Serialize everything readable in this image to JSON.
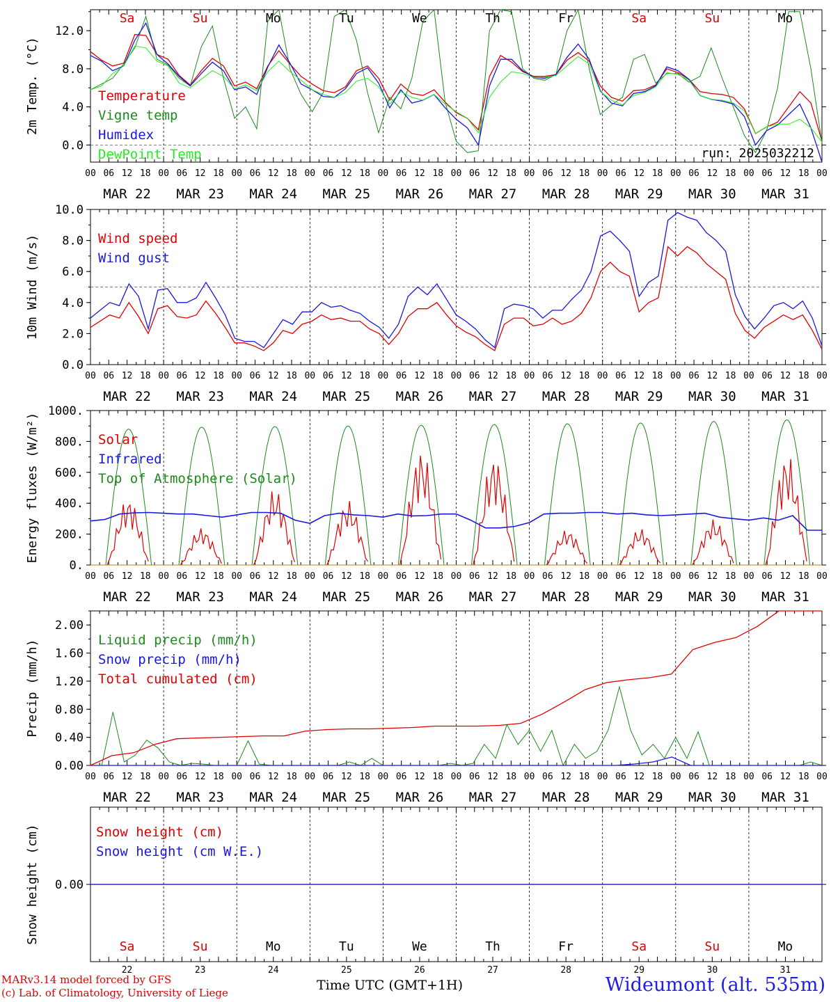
{
  "colors": {
    "red": "#e00000",
    "green": "#1c8a1c",
    "blue": "#1818e0",
    "lightgreen": "#22ee22",
    "grid": "#000000"
  },
  "time_axis": {
    "hour_labels": [
      "00",
      "06",
      "12",
      "18"
    ],
    "date_labels": [
      "MAR 22",
      "MAR 23",
      "MAR 24",
      "MAR 25",
      "MAR 26",
      "MAR 27",
      "MAR 28",
      "MAR 29",
      "MAR 30",
      "MAR 31"
    ],
    "day_names": [
      "Sa",
      "Su",
      "Mo",
      "Tu",
      "We",
      "Th",
      "Fr",
      "Sa",
      "Su",
      "Mo"
    ],
    "day_name_colors": [
      "red",
      "red",
      "black",
      "black",
      "black",
      "black",
      "black",
      "red",
      "red",
      "black"
    ],
    "day_numbers": [
      "22",
      "23",
      "24",
      "25",
      "26",
      "27",
      "28",
      "29",
      "30",
      "31"
    ]
  },
  "footer": {
    "model_line1": "MARv3.14 model forced by GFS",
    "model_line2": "(c) Lab. of Climatology, University of Liege",
    "axis_title": "Time UTC (GMT+1H)",
    "station": "Wideumont (alt. 535m)"
  },
  "chart_data": [
    {
      "type": "line",
      "ylabel": "2m Temp. (°C)",
      "ylim": [
        -1.8,
        14.2
      ],
      "yticks": [
        "0.0",
        "4.0",
        "8.0",
        "12.0"
      ],
      "ytick_values": [
        0,
        4,
        8,
        12
      ],
      "ref_line": 0,
      "annotation": "run: 2025032212",
      "x_hours_start": 0,
      "x_hours_end": 240,
      "series": [
        {
          "name": "Temperature",
          "color": "red",
          "values": [
            9.8,
            8.9,
            8.3,
            8.6,
            11.6,
            11.5,
            9.5,
            9.0,
            7.3,
            6.3,
            7.8,
            9.1,
            8.3,
            6.2,
            6.6,
            5.9,
            8.3,
            9.9,
            8.5,
            7.2,
            6.4,
            5.7,
            5.5,
            6.1,
            7.8,
            8.3,
            7.0,
            4.7,
            6.4,
            5.4,
            5.2,
            5.8,
            4.5,
            3.4,
            2.8,
            1.6,
            7.2,
            9.4,
            8.7,
            7.7,
            7.2,
            7.2,
            7.4,
            8.9,
            9.7,
            8.8,
            6.2,
            5.0,
            4.6,
            5.7,
            5.8,
            6.3,
            8.0,
            7.6,
            6.9,
            5.6,
            5.4,
            5.3,
            5.0,
            3.8,
            1.2,
            1.9,
            2.4,
            4.0,
            5.6,
            4.4,
            0.4
          ]
        },
        {
          "name": "Vigne temp",
          "color": "green",
          "values": [
            5.8,
            6.4,
            7.0,
            8.5,
            10.2,
            13.5,
            9.0,
            8.4,
            7.0,
            6.2,
            10.3,
            12.5,
            7.0,
            2.8,
            4.0,
            1.7,
            13.0,
            14.2,
            8.0,
            5.3,
            3.5,
            5.5,
            13.5,
            14.2,
            11.0,
            5.5,
            1.3,
            5.0,
            3.8,
            7.0,
            13.0,
            14.2,
            4.5,
            0.4,
            -0.8,
            -0.6,
            12.0,
            14.2,
            14.0,
            8.0,
            7.0,
            6.8,
            7.4,
            12.0,
            14.2,
            8.0,
            3.2,
            4.2,
            5.0,
            9.0,
            9.5,
            6.5,
            7.5,
            7.5,
            6.6,
            7.2,
            10.2,
            7.0,
            4.0,
            1.0,
            -0.8,
            1.5,
            6.0,
            14.0,
            14.0,
            8.0,
            0.2
          ]
        },
        {
          "name": "Humidex",
          "color": "blue",
          "values": [
            9.4,
            8.8,
            7.8,
            8.3,
            11.0,
            12.8,
            9.5,
            8.5,
            7.2,
            6.2,
            7.5,
            8.7,
            7.8,
            5.8,
            6.1,
            5.3,
            8.2,
            10.5,
            8.6,
            6.4,
            5.8,
            5.1,
            5.0,
            5.9,
            7.5,
            8.1,
            6.5,
            3.9,
            5.8,
            4.4,
            4.7,
            5.3,
            3.9,
            2.7,
            1.8,
            0.0,
            6.2,
            9.0,
            9.0,
            7.8,
            7.1,
            7.0,
            7.4,
            9.2,
            10.6,
            9.0,
            5.7,
            4.4,
            4.1,
            5.4,
            5.6,
            6.2,
            8.2,
            7.8,
            6.9,
            5.2,
            4.8,
            4.6,
            4.3,
            3.0,
            0.0,
            1.5,
            2.1,
            3.2,
            4.3,
            1.8,
            -1.8
          ]
        },
        {
          "name": "DewPoint Temp",
          "color": "lightgreen",
          "values": [
            5.8,
            6.2,
            7.5,
            8.3,
            10.4,
            10.2,
            8.8,
            8.3,
            6.5,
            6.0,
            6.9,
            7.8,
            7.2,
            5.9,
            6.3,
            5.7,
            7.7,
            8.8,
            7.7,
            6.8,
            5.8,
            5.3,
            5.0,
            5.5,
            6.7,
            7.0,
            6.1,
            4.3,
            5.6,
            5.0,
            4.7,
            5.3,
            4.3,
            3.5,
            2.8,
            1.3,
            5.0,
            6.6,
            7.7,
            7.5,
            7.1,
            7.1,
            7.3,
            8.3,
            9.3,
            8.5,
            5.6,
            4.7,
            4.2,
            5.2,
            5.5,
            6.1,
            7.6,
            7.4,
            6.8,
            5.2,
            4.8,
            4.7,
            4.4,
            3.6,
            1.2,
            1.9,
            2.2,
            2.2,
            2.7,
            1.8,
            0.3
          ]
        }
      ],
      "legend": [
        "Temperature",
        "Vigne temp",
        "Humidex",
        "DewPoint Temp"
      ]
    },
    {
      "type": "line",
      "ylabel": "10m Wind (m/s)",
      "ylim": [
        0,
        10
      ],
      "yticks": [
        "0.0",
        "2.0",
        "4.0",
        "6.0",
        "8.0",
        "10.0"
      ],
      "ytick_values": [
        0,
        2,
        4,
        6,
        8,
        10
      ],
      "ref_line": 5,
      "x_hours_start": 0,
      "x_hours_end": 240,
      "series": [
        {
          "name": "Wind speed",
          "color": "red",
          "values": [
            2.4,
            2.8,
            3.2,
            3.0,
            4.0,
            3.1,
            2.0,
            3.6,
            3.8,
            3.1,
            3.0,
            3.2,
            4.1,
            3.3,
            2.4,
            1.4,
            1.4,
            1.2,
            0.9,
            1.4,
            2.2,
            2.0,
            2.6,
            2.8,
            3.2,
            2.9,
            3.0,
            2.8,
            2.8,
            2.3,
            2.0,
            1.3,
            2.0,
            3.1,
            3.6,
            3.6,
            4.0,
            3.2,
            2.5,
            2.1,
            1.8,
            1.3,
            0.9,
            2.6,
            3.0,
            3.0,
            2.5,
            2.6,
            3.0,
            2.6,
            2.8,
            3.3,
            4.3,
            6.0,
            6.6,
            6.0,
            5.7,
            3.4,
            4.0,
            4.3,
            7.6,
            7.0,
            7.6,
            7.2,
            6.5,
            6.0,
            5.5,
            3.3,
            2.2,
            1.7,
            2.4,
            2.8,
            3.2,
            2.9,
            3.2,
            2.2,
            1.0
          ]
        },
        {
          "name": "Wind gust",
          "color": "blue",
          "values": [
            3.0,
            3.5,
            4.0,
            3.8,
            5.2,
            4.4,
            2.3,
            4.8,
            4.9,
            4.0,
            4.0,
            4.3,
            5.3,
            4.3,
            3.2,
            1.7,
            1.5,
            1.5,
            1.1,
            2.0,
            2.9,
            2.6,
            3.4,
            3.4,
            4.0,
            3.7,
            3.8,
            3.5,
            3.3,
            2.8,
            2.4,
            1.7,
            2.6,
            4.4,
            5.0,
            4.5,
            5.2,
            4.2,
            3.2,
            2.8,
            2.3,
            1.6,
            1.1,
            3.6,
            3.9,
            3.8,
            3.6,
            3.0,
            3.5,
            3.5,
            4.2,
            4.8,
            6.0,
            8.3,
            8.6,
            8.0,
            7.3,
            4.4,
            5.3,
            5.7,
            9.3,
            9.8,
            9.5,
            9.3,
            8.5,
            8.0,
            7.3,
            4.5,
            3.1,
            2.3,
            3.0,
            3.8,
            4.0,
            3.6,
            4.1,
            3.0,
            1.2
          ]
        }
      ],
      "legend": [
        "Wind speed",
        "Wind gust"
      ]
    },
    {
      "type": "line",
      "ylabel": "Energy fluxes (W/m²)",
      "ylim": [
        0,
        1000
      ],
      "yticks": [
        "0.",
        "200.",
        "400.",
        "600.",
        "800.",
        "1000."
      ],
      "ytick_values": [
        0,
        200,
        400,
        600,
        800,
        1000
      ],
      "x_hours_start": 0,
      "x_hours_end": 240,
      "toa_peaks": [
        880,
        893,
        897,
        900,
        905,
        910,
        915,
        920,
        930,
        940
      ],
      "infrared": [
        285,
        295,
        330,
        338,
        340,
        335,
        330,
        330,
        320,
        310,
        325,
        340,
        340,
        335,
        290,
        270,
        320,
        335,
        325,
        320,
        310,
        330,
        318,
        320,
        330,
        330,
        290,
        240,
        240,
        250,
        275,
        330,
        335,
        335,
        340,
        340,
        330,
        335,
        325,
        320,
        325,
        330,
        335,
        310,
        300,
        290,
        305,
        290,
        320,
        225,
        225
      ],
      "solar_peaks": [
        400,
        220,
        450,
        380,
        690,
        650,
        210,
        215,
        270,
        660
      ],
      "series": [
        {
          "name": "Solar",
          "color": "red",
          "values": [
            0,
            400,
            0,
            220,
            0,
            450,
            0,
            380,
            0,
            690,
            0,
            650,
            0,
            210,
            0,
            215,
            0,
            270,
            0,
            660,
            0
          ]
        },
        {
          "name": "Infrared",
          "color": "blue",
          "values": [
            285,
            330,
            340,
            335,
            330,
            310,
            325,
            340,
            290,
            270,
            320,
            335,
            320,
            310,
            330,
            320,
            330,
            290,
            240,
            250,
            275,
            330,
            335,
            340,
            330,
            335,
            320,
            325,
            335,
            310,
            290,
            305,
            320,
            225
          ]
        },
        {
          "name": "Top of Atmosphere (Solar)",
          "color": "green",
          "values": [
            0,
            880,
            0,
            893,
            0,
            897,
            0,
            900,
            0,
            905,
            0,
            910,
            0,
            915,
            0,
            920,
            0,
            930,
            0,
            940,
            0
          ]
        }
      ],
      "legend": [
        "Solar",
        "Infrared",
        "Top of Atmosphere (Solar)"
      ]
    },
    {
      "type": "line",
      "ylabel": "Precip (mm/h)",
      "ylim": [
        0,
        2.2
      ],
      "yticks": [
        "0.00",
        "0.40",
        "0.80",
        "1.20",
        "1.60",
        "2.00"
      ],
      "ytick_values": [
        0,
        0.4,
        0.8,
        1.2,
        1.6,
        2.0
      ],
      "x_hours_start": 0,
      "x_hours_end": 240,
      "series": [
        {
          "name": "Liquid precip (mm/h)",
          "color": "green",
          "values": [
            0,
            0,
            0.76,
            0.05,
            0.15,
            0.36,
            0.25,
            0.05,
            0,
            0.03,
            0.02,
            0,
            0,
            0,
            0.35,
            0.02,
            0,
            0,
            0,
            0,
            0,
            0,
            0,
            0.05,
            0,
            0.1,
            0,
            0,
            0,
            0,
            0,
            0,
            0.03,
            0,
            0.03,
            0.3,
            0.1,
            0.58,
            0.3,
            0.5,
            0.2,
            0.5,
            0,
            0.3,
            0.1,
            0.2,
            0.5,
            1.12,
            0.5,
            0.15,
            0.3,
            0.1,
            0.4,
            0.1,
            0.48,
            0,
            0,
            0,
            0,
            0,
            0,
            0,
            0,
            0,
            0.05,
            0
          ]
        },
        {
          "name": "Snow precip (mm/h)",
          "color": "blue",
          "values": [
            0,
            0,
            0,
            0,
            0,
            0,
            0,
            0,
            0,
            0,
            0,
            0,
            0,
            0,
            0,
            0,
            0,
            0,
            0,
            0,
            0,
            0,
            0,
            0,
            0,
            0,
            0,
            0,
            0,
            0.02,
            0.05,
            0.12,
            0,
            0,
            0,
            0,
            0,
            0,
            0,
            0
          ]
        },
        {
          "name": "Total cumulated (cm)",
          "color": "red",
          "values": [
            0,
            0.14,
            0.18,
            0.3,
            0.38,
            0.39,
            0.4,
            0.41,
            0.42,
            0.42,
            0.49,
            0.51,
            0.52,
            0.52,
            0.53,
            0.54,
            0.56,
            0.56,
            0.56,
            0.57,
            0.6,
            0.73,
            0.9,
            1.08,
            1.18,
            1.22,
            1.25,
            1.3,
            1.65,
            1.75,
            1.82,
            1.98,
            2.2,
            2.2,
            2.2
          ]
        }
      ],
      "legend": [
        "Liquid precip (mm/h)",
        "Snow precip (mm/h)",
        "Total cumulated (cm)"
      ]
    },
    {
      "type": "line",
      "ylabel": "Snow height (cm)",
      "ylim": [
        -1,
        1
      ],
      "yticks": [
        "0.00"
      ],
      "ytick_values": [
        0
      ],
      "x_hours_start": 0,
      "x_hours_end": 240,
      "series": [
        {
          "name": "Snow height (cm)",
          "color": "red",
          "values": [
            0,
            0
          ]
        },
        {
          "name": "Snow height (cm W.E.)",
          "color": "blue",
          "values": [
            0,
            0
          ]
        }
      ],
      "legend": [
        "Snow height (cm)",
        "Snow height (cm W.E.)"
      ]
    }
  ]
}
